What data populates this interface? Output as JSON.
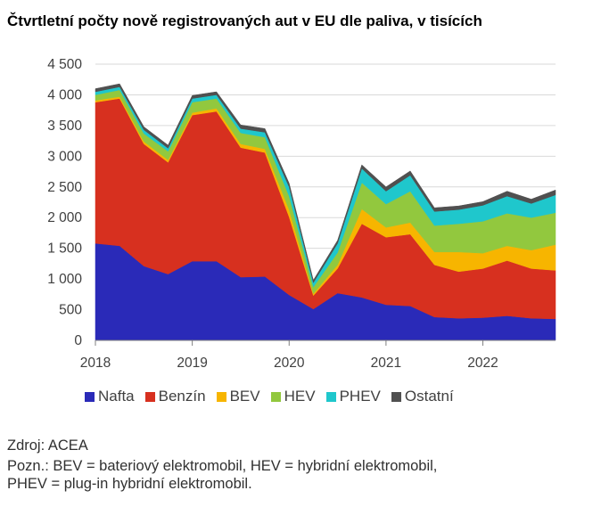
{
  "title": "Čtvrtletní počty nově registrovaných aut v EU dle paliva, v tisících",
  "source": "Zdroj: ACEA",
  "note_line1": "Pozn.: BEV = bateriový elektromobil, HEV = hybridní elektromobil,",
  "note_line2": "PHEV = plug-in hybridní elektromobil.",
  "chart_data": {
    "type": "area",
    "stacked": true,
    "x": [
      "2018Q1",
      "2018Q2",
      "2018Q3",
      "2018Q4",
      "2019Q1",
      "2019Q2",
      "2019Q3",
      "2019Q4",
      "2020Q1",
      "2020Q2",
      "2020Q3",
      "2020Q4",
      "2021Q1",
      "2021Q2",
      "2021Q3",
      "2021Q4",
      "2022Q1",
      "2022Q2",
      "2022Q3",
      "2022Q4"
    ],
    "x_tick_labels": [
      "2018",
      "2019",
      "2020",
      "2021",
      "2022"
    ],
    "y_ticks": [
      "0",
      "500",
      "1 000",
      "1 500",
      "2 000",
      "2 500",
      "3 000",
      "3 500",
      "4 000",
      "4 500"
    ],
    "ylim": [
      0,
      4500
    ],
    "grid": true,
    "legend_position": "bottom",
    "series": [
      {
        "name": "Nafta",
        "color": "#2a2ab8",
        "values": [
          1580,
          1540,
          1210,
          1080,
          1290,
          1290,
          1030,
          1040,
          740,
          510,
          770,
          700,
          580,
          560,
          380,
          360,
          370,
          400,
          360,
          350
        ]
      },
      {
        "name": "Benzín",
        "color": "#d7301f",
        "values": [
          2300,
          2400,
          1990,
          1820,
          2380,
          2440,
          2110,
          2020,
          1270,
          220,
          400,
          1200,
          1100,
          1170,
          850,
          760,
          800,
          900,
          810,
          790
        ]
      },
      {
        "name": "BEV",
        "color": "#f7b500",
        "values": [
          30,
          30,
          40,
          40,
          40,
          50,
          60,
          60,
          120,
          30,
          60,
          240,
          160,
          190,
          210,
          320,
          250,
          240,
          300,
          420
        ]
      },
      {
        "name": "HEV",
        "color": "#92c83e",
        "values": [
          90,
          110,
          130,
          140,
          170,
          160,
          180,
          190,
          220,
          110,
          200,
          430,
          380,
          510,
          430,
          460,
          520,
          530,
          530,
          520
        ]
      },
      {
        "name": "PHEV",
        "color": "#1fc7cc",
        "values": [
          50,
          50,
          60,
          50,
          60,
          60,
          70,
          80,
          150,
          70,
          150,
          230,
          210,
          260,
          230,
          230,
          260,
          280,
          230,
          290
        ]
      },
      {
        "name": "Ostatní",
        "color": "#505050",
        "values": [
          50,
          50,
          50,
          50,
          50,
          50,
          60,
          60,
          60,
          40,
          50,
          60,
          70,
          70,
          60,
          60,
          60,
          80,
          70,
          80
        ]
      }
    ]
  }
}
